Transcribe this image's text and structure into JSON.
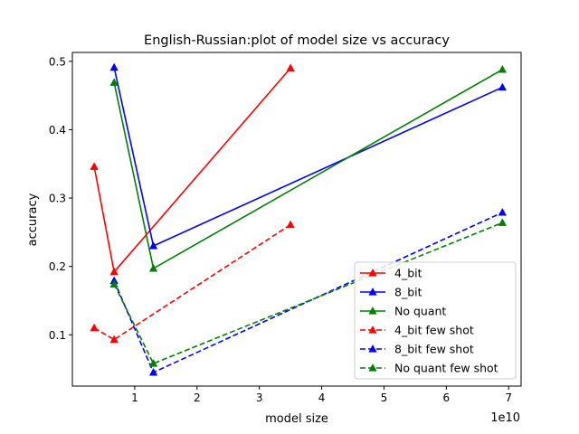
{
  "chart_data": {
    "type": "line",
    "title": "English-Russian:plot of model size vs accuracy",
    "xlabel": "model size",
    "ylabel": "accuracy",
    "x_offset_label": "1e10",
    "xlim": [
      0.0,
      7.2
    ],
    "ylim": [
      0.025,
      0.513
    ],
    "xticks": [
      1,
      2,
      3,
      4,
      5,
      6,
      7
    ],
    "yticks": [
      0.1,
      0.2,
      0.3,
      0.4,
      0.5
    ],
    "grid": false,
    "legend_position": "lower-right",
    "series": [
      {
        "name": "4_bit",
        "color": "#ff0000",
        "dashed": false,
        "points": [
          [
            0.35,
            0.346
          ],
          [
            0.67,
            0.192
          ],
          [
            3.5,
            0.49
          ]
        ]
      },
      {
        "name": "8_bit",
        "color": "#0000ff",
        "dashed": false,
        "points": [
          [
            0.67,
            0.491
          ],
          [
            1.3,
            0.23
          ],
          [
            6.9,
            0.462
          ]
        ]
      },
      {
        "name": "No quant",
        "color": "#008000",
        "dashed": false,
        "points": [
          [
            0.67,
            0.469
          ],
          [
            1.3,
            0.197
          ],
          [
            6.9,
            0.488
          ]
        ]
      },
      {
        "name": "4_bit few shot",
        "color": "#ff0000",
        "dashed": true,
        "points": [
          [
            0.35,
            0.11
          ],
          [
            0.67,
            0.093
          ],
          [
            3.5,
            0.261
          ]
        ]
      },
      {
        "name": "8_bit few shot",
        "color": "#0000ff",
        "dashed": true,
        "points": [
          [
            0.67,
            0.179
          ],
          [
            1.3,
            0.045
          ],
          [
            6.9,
            0.279
          ]
        ]
      },
      {
        "name": "No quant few shot",
        "color": "#008000",
        "dashed": true,
        "points": [
          [
            0.67,
            0.174
          ],
          [
            1.3,
            0.058
          ],
          [
            6.9,
            0.264
          ]
        ]
      }
    ]
  }
}
